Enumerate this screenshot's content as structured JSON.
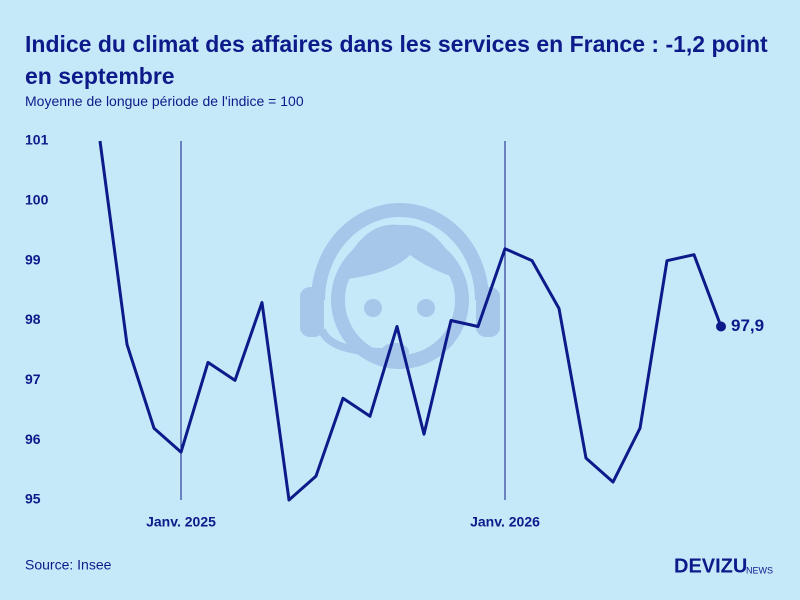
{
  "chart_data": {
    "type": "line",
    "title": "Indice du climat des affaires dans les services en France : -1,2 point en septembre",
    "subtitle": "Moyenne de longue période de l'indice = 100",
    "source": "Source: Insee",
    "brand": "DEVIZU",
    "brand_suffix": "NEWS",
    "categories": [
      null,
      null,
      null,
      "Janv. 2025",
      null,
      null,
      null,
      null,
      null,
      null,
      null,
      null,
      null,
      null,
      null,
      "Janv. 2026",
      null,
      null,
      null,
      null,
      null,
      null,
      null,
      null
    ],
    "values": [
      101,
      97.6,
      96.2,
      95.8,
      97.3,
      97.0,
      98.3,
      95.0,
      95.4,
      96.7,
      96.4,
      97.9,
      96.1,
      98.0,
      97.9,
      99.2,
      99.0,
      98.2,
      95.7,
      95.3,
      96.2,
      99.0,
      99.1,
      97.9
    ],
    "value_labels": [
      null,
      null,
      null,
      null,
      null,
      null,
      null,
      null,
      null,
      null,
      null,
      null,
      null,
      null,
      null,
      null,
      null,
      null,
      null,
      null,
      null,
      null,
      null,
      "97,9"
    ],
    "color": "#0d1a8a",
    "ylim": [
      95,
      101
    ],
    "yticks": [
      95,
      96,
      97,
      98,
      99,
      100,
      101
    ]
  }
}
